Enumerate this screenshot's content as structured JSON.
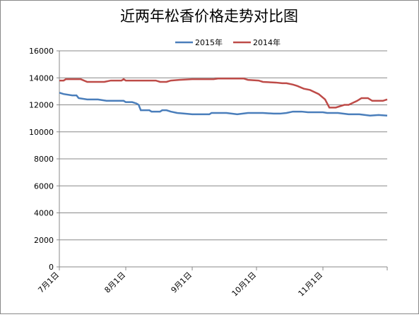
{
  "chart_data": {
    "type": "line",
    "title": "近两年松香价格走势对比图",
    "xlim": [
      0,
      153
    ],
    "xticks": [
      {
        "value": 0,
        "label": "7月1日"
      },
      {
        "value": 31,
        "label": "8月1日"
      },
      {
        "value": 62,
        "label": "9月1日"
      },
      {
        "value": 92,
        "label": "10月1日"
      },
      {
        "value": 123,
        "label": "11月1日"
      }
    ],
    "ylim": [
      0,
      16000
    ],
    "yticks": [
      0,
      2000,
      4000,
      6000,
      8000,
      10000,
      12000,
      14000,
      16000
    ],
    "grid": true,
    "legend": "top",
    "series": [
      {
        "name": "2015年",
        "color": "#4a7ebb",
        "x": [
          0,
          2,
          6,
          8,
          9,
          13,
          18,
          22,
          30,
          31,
          34,
          36,
          37,
          38,
          42,
          43,
          47,
          48,
          50,
          52,
          55,
          62,
          70,
          71,
          78,
          83,
          88,
          95,
          100,
          103,
          106,
          109,
          113,
          116,
          123,
          125,
          130,
          135,
          140,
          145,
          149,
          153
        ],
        "values": [
          12900,
          12800,
          12700,
          12700,
          12500,
          12400,
          12400,
          12300,
          12300,
          12200,
          12200,
          12100,
          12000,
          11600,
          11600,
          11500,
          11500,
          11600,
          11600,
          11500,
          11400,
          11300,
          11300,
          11400,
          11400,
          11300,
          11400,
          11400,
          11350,
          11350,
          11400,
          11500,
          11500,
          11450,
          11450,
          11400,
          11400,
          11300,
          11300,
          11200,
          11250,
          11200
        ]
      },
      {
        "name": "2014年",
        "color": "#be4b48",
        "x": [
          0,
          2,
          3,
          10,
          13,
          21,
          24,
          29,
          30,
          31,
          45,
          47,
          50,
          52,
          56,
          62,
          72,
          74,
          86,
          88,
          93,
          95,
          101,
          104,
          106,
          109,
          111,
          114,
          117,
          121,
          124,
          126,
          129,
          133,
          135,
          139,
          141,
          144,
          146,
          151,
          153
        ],
        "values": [
          13800,
          13800,
          13900,
          13900,
          13700,
          13700,
          13800,
          13800,
          13900,
          13800,
          13800,
          13700,
          13700,
          13800,
          13850,
          13900,
          13900,
          13950,
          13950,
          13850,
          13800,
          13700,
          13650,
          13600,
          13600,
          13500,
          13400,
          13200,
          13100,
          12800,
          12400,
          11800,
          11800,
          12000,
          12000,
          12300,
          12500,
          12500,
          12300,
          12300,
          12400
        ]
      }
    ]
  }
}
